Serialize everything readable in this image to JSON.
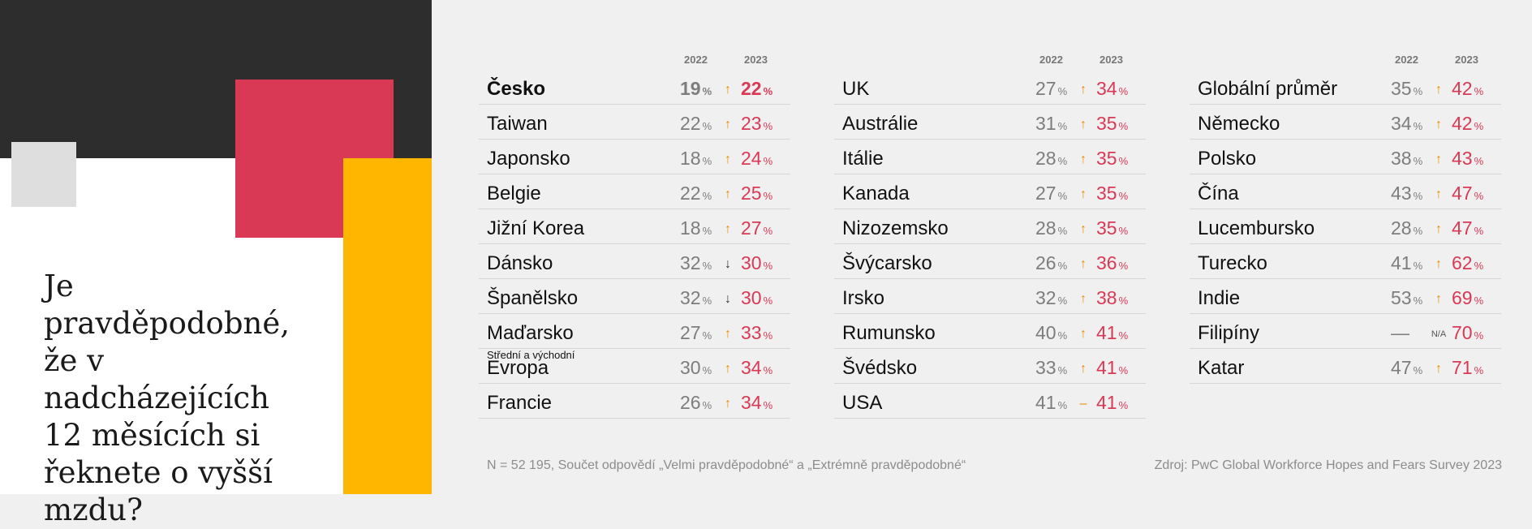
{
  "question": "Je pravděpodobné, že v nadcházejících 12 měsících si řeknete o vyšší mzdu?",
  "year1": "2022",
  "year2": "2023",
  "pct_sign": "%",
  "colors": {
    "dark": "#2d2d2d",
    "red": "#d93954",
    "yellow": "#ffb600",
    "orange_arrow": "#eb8c00",
    "grey_value": "#7d7d7d"
  },
  "columns": [
    {
      "rows": [
        {
          "country": "Česko",
          "sub": "",
          "v2022": "19",
          "trend": "↑",
          "v2023": "22",
          "bold": true
        },
        {
          "country": "Taiwan",
          "sub": "",
          "v2022": "22",
          "trend": "↑",
          "v2023": "23"
        },
        {
          "country": "Japonsko",
          "sub": "",
          "v2022": "18",
          "trend": "↑",
          "v2023": "24"
        },
        {
          "country": "Belgie",
          "sub": "",
          "v2022": "22",
          "trend": "↑",
          "v2023": "25"
        },
        {
          "country": "Jižní Korea",
          "sub": "",
          "v2022": "18",
          "trend": "↑",
          "v2023": "27"
        },
        {
          "country": "Dánsko",
          "sub": "",
          "v2022": "32",
          "trend": "↓",
          "v2023": "30"
        },
        {
          "country": "Španělsko",
          "sub": "",
          "v2022": "32",
          "trend": "↓",
          "v2023": "30"
        },
        {
          "country": "Maďarsko",
          "sub": "",
          "v2022": "27",
          "trend": "↑",
          "v2023": "33"
        },
        {
          "country": "Evropa",
          "sub": "Střední a východní",
          "v2022": "30",
          "trend": "↑",
          "v2023": "34"
        },
        {
          "country": "Francie",
          "sub": "",
          "v2022": "26",
          "trend": "↑",
          "v2023": "34"
        }
      ]
    },
    {
      "rows": [
        {
          "country": "UK",
          "sub": "",
          "v2022": "27",
          "trend": "↑",
          "v2023": "34"
        },
        {
          "country": "Austrálie",
          "sub": "",
          "v2022": "31",
          "trend": "↑",
          "v2023": "35"
        },
        {
          "country": "Itálie",
          "sub": "",
          "v2022": "28",
          "trend": "↑",
          "v2023": "35"
        },
        {
          "country": "Kanada",
          "sub": "",
          "v2022": "27",
          "trend": "↑",
          "v2023": "35"
        },
        {
          "country": "Nizozemsko",
          "sub": "",
          "v2022": "28",
          "trend": "↑",
          "v2023": "35"
        },
        {
          "country": "Švýcarsko",
          "sub": "",
          "v2022": "26",
          "trend": "↑",
          "v2023": "36"
        },
        {
          "country": "Irsko",
          "sub": "",
          "v2022": "32",
          "trend": "↑",
          "v2023": "38"
        },
        {
          "country": "Rumunsko",
          "sub": "",
          "v2022": "40",
          "trend": "↑",
          "v2023": "41"
        },
        {
          "country": "Švédsko",
          "sub": "",
          "v2022": "33",
          "trend": "↑",
          "v2023": "41"
        },
        {
          "country": "USA",
          "sub": "",
          "v2022": "41",
          "trend": "–",
          "v2023": "41"
        }
      ]
    },
    {
      "rows": [
        {
          "country": "Globální průměr",
          "sub": "",
          "v2022": "35",
          "trend": "↑",
          "v2023": "42"
        },
        {
          "country": "Německo",
          "sub": "",
          "v2022": "34",
          "trend": "↑",
          "v2023": "42"
        },
        {
          "country": "Polsko",
          "sub": "",
          "v2022": "38",
          "trend": "↑",
          "v2023": "43"
        },
        {
          "country": "Čína",
          "sub": "",
          "v2022": "43",
          "trend": "↑",
          "v2023": "47"
        },
        {
          "country": "Lucembursko",
          "sub": "",
          "v2022": "28",
          "trend": "↑",
          "v2023": "47"
        },
        {
          "country": "Turecko",
          "sub": "",
          "v2022": "41",
          "trend": "↑",
          "v2023": "62"
        },
        {
          "country": "Indie",
          "sub": "",
          "v2022": "53",
          "trend": "↑",
          "v2023": "69"
        },
        {
          "country": "Filipíny",
          "sub": "",
          "v2022": "—",
          "trend": "N/A",
          "v2023": "70",
          "no_pct_2022": true
        },
        {
          "country": "Katar",
          "sub": "",
          "v2022": "47",
          "trend": "↑",
          "v2023": "71"
        }
      ]
    }
  ],
  "footer": {
    "note": "N = 52 195, Součet odpovědí „Velmi pravděpodobné“ a „Extrémně pravděpodobné“",
    "source": "Zdroj: PwC Global Workforce Hopes and Fears Survey 2023"
  }
}
